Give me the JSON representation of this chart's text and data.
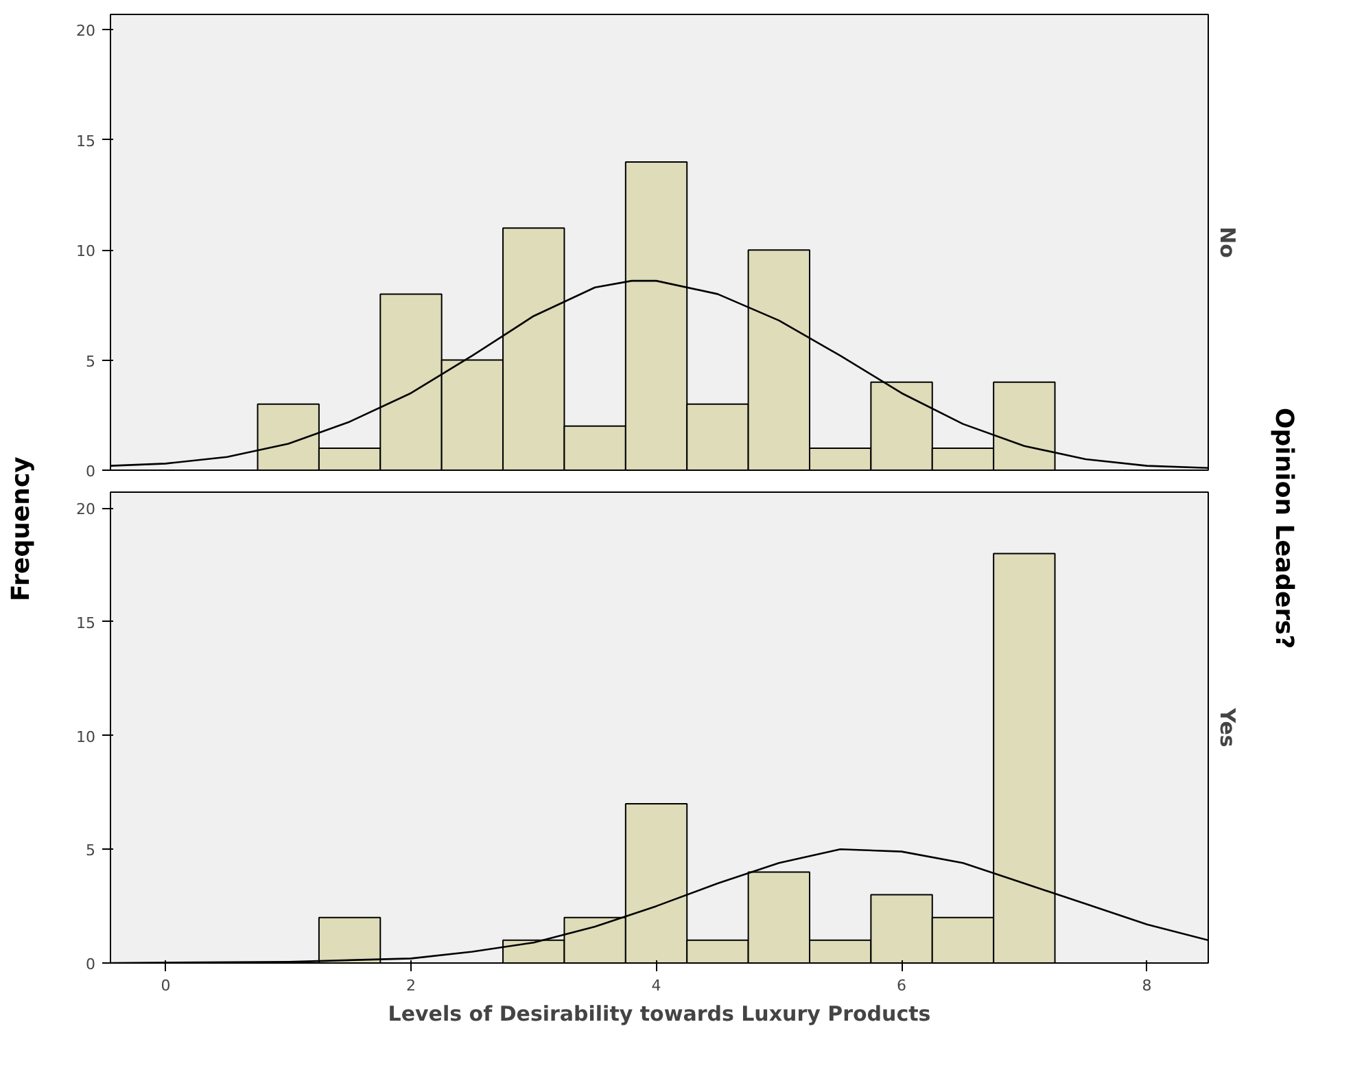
{
  "chart_data": [
    {
      "type": "histogram",
      "ylabel": "Frequency",
      "y2label": "No",
      "legend_title": "Opinion Leaders?",
      "bins": [
        0.75,
        1.25,
        1.75,
        2.25,
        2.75,
        3.25,
        3.75,
        4.25,
        4.75,
        5.25,
        5.75,
        6.25,
        6.75,
        7.25
      ],
      "values": [
        3,
        1,
        8,
        5,
        11,
        2,
        14,
        3,
        10,
        1,
        4,
        1,
        4
      ],
      "color": "#dedcb9",
      "xlim": [
        -0.45,
        8.5
      ],
      "ylim": [
        0,
        20.7
      ],
      "xticks": [
        0,
        2,
        4,
        6,
        8
      ],
      "yticks": [
        0,
        5,
        10,
        15,
        20
      ],
      "tick_labels": "y",
      "grid": false,
      "series": [
        {
          "type": "line",
          "color": "#000000",
          "x": [
            -0.45,
            0,
            0.5,
            1,
            1.5,
            2,
            2.5,
            3,
            3.5,
            3.8,
            4,
            4.5,
            5,
            5.5,
            6,
            6.5,
            7,
            7.5,
            8,
            8.5
          ],
          "values": [
            0.2,
            0.3,
            0.6,
            1.2,
            2.2,
            3.5,
            5.2,
            7.0,
            8.3,
            8.6,
            8.6,
            8.0,
            6.8,
            5.2,
            3.5,
            2.1,
            1.1,
            0.5,
            0.2,
            0.1
          ]
        }
      ]
    },
    {
      "type": "histogram",
      "xlabel": "Levels of Desirability towards Luxury Products",
      "y2label": "Yes",
      "bins": [
        0.75,
        1.25,
        1.75,
        2.25,
        2.75,
        3.25,
        3.75,
        4.25,
        4.75,
        5.25,
        5.75,
        6.25,
        6.75,
        7.25
      ],
      "values": [
        0,
        2,
        0,
        0,
        1,
        2,
        7,
        1,
        4,
        1,
        3,
        2,
        18
      ],
      "color": "#dedcb9",
      "xlim": [
        -0.45,
        8.5
      ],
      "ylim": [
        0,
        20.7
      ],
      "xticks": [
        0,
        2,
        4,
        6,
        8
      ],
      "yticks": [
        0,
        5,
        10,
        15,
        20
      ],
      "grid": false,
      "series": [
        {
          "type": "line",
          "color": "#000000",
          "x": [
            -0.45,
            1,
            2,
            2.5,
            3,
            3.5,
            4,
            4.5,
            5,
            5.5,
            6,
            6.5,
            7,
            7.5,
            8,
            8.5
          ],
          "values": [
            0,
            0.05,
            0.2,
            0.5,
            0.9,
            1.6,
            2.5,
            3.5,
            4.4,
            5.0,
            4.9,
            4.4,
            3.5,
            2.6,
            1.7,
            1.0
          ]
        }
      ]
    }
  ]
}
